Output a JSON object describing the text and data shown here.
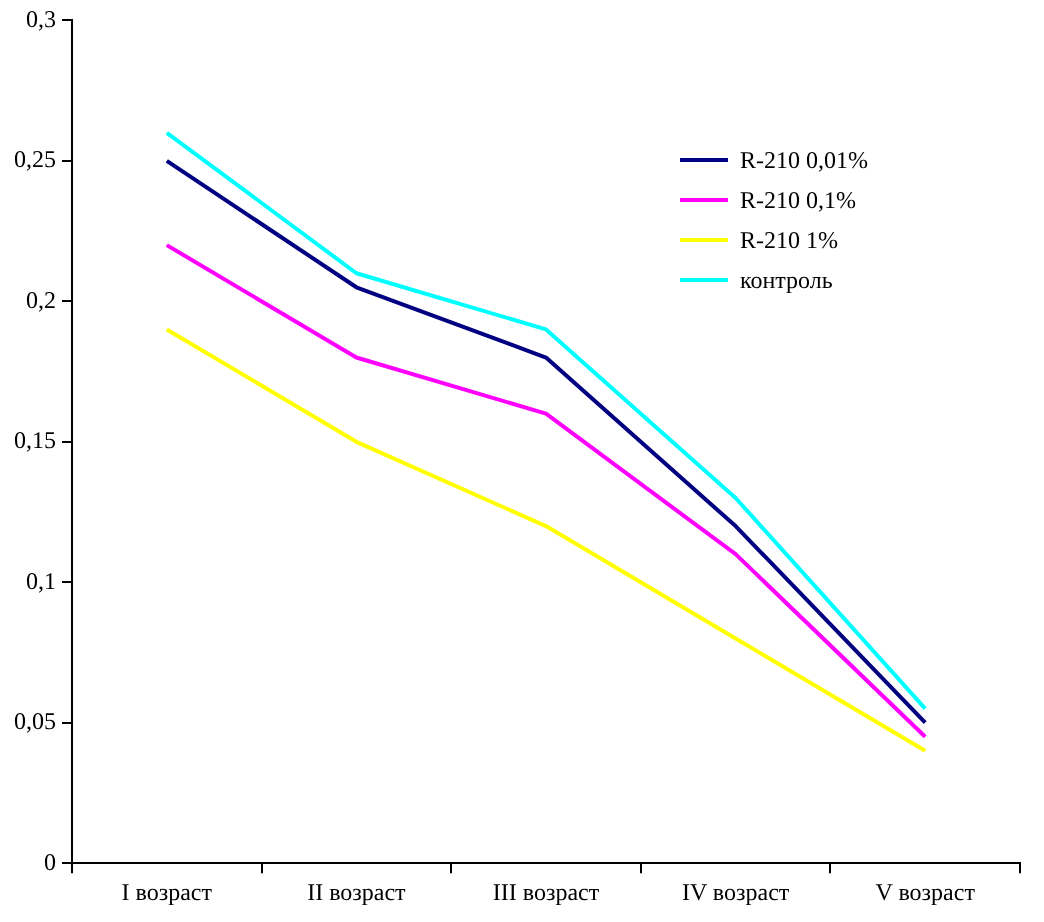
{
  "chart_data": {
    "type": "line",
    "categories": [
      "I возраст",
      "II возраст",
      "III возраст",
      "IV возраст",
      "V возраст"
    ],
    "series": [
      {
        "name": "R-210 0,01%",
        "color": "#000080",
        "values": [
          0.25,
          0.205,
          0.18,
          0.12,
          0.05
        ]
      },
      {
        "name": "R-210 0,1%",
        "color": "#ff00ff",
        "values": [
          0.22,
          0.18,
          0.16,
          0.11,
          0.045
        ]
      },
      {
        "name": "R-210 1%",
        "color": "#ffff00",
        "values": [
          0.19,
          0.15,
          0.12,
          0.08,
          0.04
        ]
      },
      {
        "name": "контроль",
        "color": "#00ffff",
        "values": [
          0.26,
          0.21,
          0.19,
          0.13,
          0.055
        ]
      }
    ],
    "ylim": [
      0,
      0.3
    ],
    "yticks": [
      0,
      {
        "value": 0.05,
        "label": "0,05"
      },
      {
        "value": 0.1,
        "label": "0,1"
      },
      {
        "value": 0.15,
        "label": "0,15"
      },
      {
        "value": 0.2,
        "label": "0,2"
      },
      {
        "value": 0.25,
        "label": "0,25"
      },
      {
        "value": 0.3,
        "label": "0,3"
      }
    ],
    "legend": "top right",
    "grid": false,
    "marker": "none",
    "line_style": "solid"
  }
}
